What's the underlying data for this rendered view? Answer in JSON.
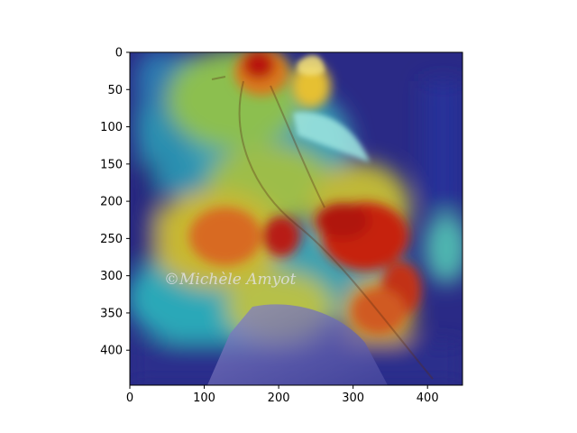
{
  "figure": {
    "image_description_colors": {
      "cold": "#1a1a8c",
      "mid": "#22c3c3",
      "warm": "#f0d020",
      "hot": "#c01808"
    },
    "watermark_text": "©Michèle Amyot",
    "x_axis": {
      "ticks": [
        0,
        100,
        200,
        300,
        400
      ],
      "labels": [
        "0",
        "100",
        "200",
        "300",
        "400"
      ],
      "range": [
        0,
        447
      ]
    },
    "y_axis": {
      "ticks": [
        0,
        50,
        100,
        150,
        200,
        250,
        300,
        350,
        400
      ],
      "labels": [
        "0",
        "50",
        "100",
        "150",
        "200",
        "250",
        "300",
        "350",
        "400"
      ],
      "range": [
        0,
        447
      ],
      "inverted": true
    }
  }
}
